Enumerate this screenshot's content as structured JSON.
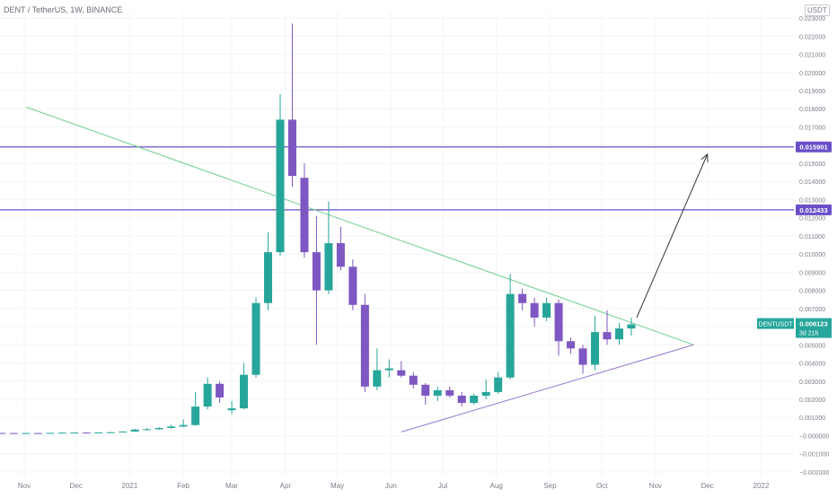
{
  "header": {
    "title": "DENT / TetherUS, 1W, BINANCE",
    "currency_badge": "USDT"
  },
  "colors": {
    "up": "#26a69a",
    "down": "#7e57c2",
    "resistance": "#6a4fc9",
    "support_line": "#9575cd",
    "trend_line": "#6fcf8f",
    "arrow": "#333333",
    "grid": "#f3f4f6",
    "axis_text": "#7a7e8a"
  },
  "chart_data": {
    "type": "candlestick",
    "symbol": "DENTUSDT",
    "interval": "1W",
    "x_labels": [
      "Nov",
      "Dec",
      "2021",
      "Feb",
      "Mar",
      "Apr",
      "May",
      "Jun",
      "Jul",
      "Aug",
      "Sep",
      "Oct",
      "Nov",
      "Dec",
      "2022"
    ],
    "y_ticks": [
      "0.023000",
      "0.022000",
      "0.021000",
      "0.020000",
      "0.019000",
      "0.018000",
      "0.017000",
      "0.016000",
      "0.015000",
      "0.014000",
      "0.013000",
      "0.012000",
      "0.011000",
      "0.010000",
      "0.009000",
      "0.008000",
      "0.007000",
      "0.006000",
      "0.005000",
      "0.004000",
      "0.003000",
      "0.002000",
      "0.001000",
      "−0.000000",
      "−0.001000",
      "−0.002000"
    ],
    "y_range": [
      -0.0023,
      0.0233
    ],
    "horizontal_levels": [
      {
        "label": "0.015901",
        "value": 0.015901
      },
      {
        "label": "0.012433",
        "value": 0.012433
      }
    ],
    "last_price": {
      "symbol": "DENTUSDT",
      "value": "0.006123",
      "countdown": "3d 21h"
    },
    "candles": [
      {
        "date": "2020-10-05",
        "o": 0.000155,
        "h": 0.000175,
        "l": 0.00014,
        "c": 0.00015
      },
      {
        "date": "2020-10-12",
        "o": 0.00015,
        "h": 0.00017,
        "l": 0.000135,
        "c": 0.000145
      },
      {
        "date": "2020-10-19",
        "o": 0.000145,
        "h": 0.00016,
        "l": 0.00013,
        "c": 0.00014
      },
      {
        "date": "2020-10-26",
        "o": 0.00014,
        "h": 0.000155,
        "l": 0.000125,
        "c": 0.000135
      },
      {
        "date": "2020-11-02",
        "o": 0.000135,
        "h": 0.00015,
        "l": 0.000125,
        "c": 0.00014
      },
      {
        "date": "2020-11-09",
        "o": 0.00014,
        "h": 0.000155,
        "l": 0.00013,
        "c": 0.000135
      },
      {
        "date": "2020-11-16",
        "o": 0.000135,
        "h": 0.00016,
        "l": 0.000125,
        "c": 0.00015
      },
      {
        "date": "2020-11-23",
        "o": 0.00015,
        "h": 0.00018,
        "l": 0.00014,
        "c": 0.00016
      },
      {
        "date": "2020-11-30",
        "o": 0.00016,
        "h": 0.000175,
        "l": 0.00015,
        "c": 0.000165
      },
      {
        "date": "2020-12-07",
        "o": 0.000165,
        "h": 0.00018,
        "l": 0.00015,
        "c": 0.000155
      },
      {
        "date": "2020-12-14",
        "o": 0.000155,
        "h": 0.000185,
        "l": 0.00015,
        "c": 0.000175
      },
      {
        "date": "2020-12-21",
        "o": 0.000175,
        "h": 0.0002,
        "l": 0.00016,
        "c": 0.000185
      },
      {
        "date": "2020-12-28",
        "o": 0.000185,
        "h": 0.00024,
        "l": 0.000175,
        "c": 0.000225
      },
      {
        "date": "2021-01-04",
        "o": 0.000225,
        "h": 0.00038,
        "l": 0.00021,
        "c": 0.00033
      },
      {
        "date": "2021-01-11",
        "o": 0.00033,
        "h": 0.00042,
        "l": 0.00029,
        "c": 0.00035
      },
      {
        "date": "2021-01-18",
        "o": 0.00035,
        "h": 0.00046,
        "l": 0.00032,
        "c": 0.00042
      },
      {
        "date": "2021-01-25",
        "o": 0.00042,
        "h": 0.0006,
        "l": 0.00038,
        "c": 0.0005
      },
      {
        "date": "2021-02-01",
        "o": 0.0005,
        "h": 0.0009,
        "l": 0.00046,
        "c": 0.00058
      },
      {
        "date": "2021-02-08",
        "o": 0.00058,
        "h": 0.0024,
        "l": 0.00055,
        "c": 0.0016
      },
      {
        "date": "2021-02-15",
        "o": 0.0016,
        "h": 0.0032,
        "l": 0.00145,
        "c": 0.00285
      },
      {
        "date": "2021-02-22",
        "o": 0.00285,
        "h": 0.003,
        "l": 0.0018,
        "c": 0.0021
      },
      {
        "date": "2021-03-01",
        "o": 0.0014,
        "h": 0.0019,
        "l": 0.0012,
        "c": 0.0015
      },
      {
        "date": "2021-03-08",
        "o": 0.0015,
        "h": 0.004,
        "l": 0.00145,
        "c": 0.00335
      },
      {
        "date": "2021-03-15",
        "o": 0.00335,
        "h": 0.0076,
        "l": 0.0032,
        "c": 0.0073
      },
      {
        "date": "2021-03-22",
        "o": 0.0073,
        "h": 0.0112,
        "l": 0.0069,
        "c": 0.0101
      },
      {
        "date": "2021-03-29",
        "o": 0.0101,
        "h": 0.0188,
        "l": 0.0099,
        "c": 0.0174
      },
      {
        "date": "2021-04-05",
        "o": 0.0174,
        "h": 0.0227,
        "l": 0.0137,
        "c": 0.0143
      },
      {
        "date": "2021-04-12",
        "o": 0.0142,
        "h": 0.015,
        "l": 0.0098,
        "c": 0.0101
      },
      {
        "date": "2021-04-19",
        "o": 0.0101,
        "h": 0.0121,
        "l": 0.005,
        "c": 0.008
      },
      {
        "date": "2021-04-26",
        "o": 0.008,
        "h": 0.0129,
        "l": 0.0078,
        "c": 0.0106
      },
      {
        "date": "2021-05-03",
        "o": 0.0106,
        "h": 0.0115,
        "l": 0.0091,
        "c": 0.0093
      },
      {
        "date": "2021-05-10",
        "o": 0.0093,
        "h": 0.0097,
        "l": 0.0069,
        "c": 0.0072
      },
      {
        "date": "2021-05-17",
        "o": 0.0072,
        "h": 0.0078,
        "l": 0.0024,
        "c": 0.0027
      },
      {
        "date": "2021-05-24",
        "o": 0.0027,
        "h": 0.0048,
        "l": 0.0025,
        "c": 0.0036
      },
      {
        "date": "2021-05-31",
        "o": 0.0036,
        "h": 0.0042,
        "l": 0.0032,
        "c": 0.0037
      },
      {
        "date": "2021-06-07",
        "o": 0.0036,
        "h": 0.0041,
        "l": 0.0032,
        "c": 0.0033
      },
      {
        "date": "2021-06-14",
        "o": 0.0033,
        "h": 0.0035,
        "l": 0.0026,
        "c": 0.0028
      },
      {
        "date": "2021-06-21",
        "o": 0.0028,
        "h": 0.0029,
        "l": 0.0017,
        "c": 0.0022
      },
      {
        "date": "2021-06-28",
        "o": 0.0022,
        "h": 0.0027,
        "l": 0.0019,
        "c": 0.0025
      },
      {
        "date": "2021-07-05",
        "o": 0.0025,
        "h": 0.0027,
        "l": 0.0021,
        "c": 0.0022
      },
      {
        "date": "2021-07-12",
        "o": 0.0022,
        "h": 0.0024,
        "l": 0.0016,
        "c": 0.0018
      },
      {
        "date": "2021-07-19",
        "o": 0.0018,
        "h": 0.0023,
        "l": 0.0017,
        "c": 0.0022
      },
      {
        "date": "2021-07-26",
        "o": 0.0022,
        "h": 0.0031,
        "l": 0.002,
        "c": 0.0024
      },
      {
        "date": "2021-08-02",
        "o": 0.0024,
        "h": 0.0035,
        "l": 0.0023,
        "c": 0.0032
      },
      {
        "date": "2021-08-09",
        "o": 0.0032,
        "h": 0.0089,
        "l": 0.0031,
        "c": 0.0078
      },
      {
        "date": "2021-08-16",
        "o": 0.0078,
        "h": 0.0081,
        "l": 0.0069,
        "c": 0.0073
      },
      {
        "date": "2021-08-23",
        "o": 0.0073,
        "h": 0.0076,
        "l": 0.006,
        "c": 0.0065
      },
      {
        "date": "2021-08-30",
        "o": 0.0065,
        "h": 0.0076,
        "l": 0.0063,
        "c": 0.0073
      },
      {
        "date": "2021-09-06",
        "o": 0.0073,
        "h": 0.0075,
        "l": 0.0044,
        "c": 0.0052
      },
      {
        "date": "2021-09-13",
        "o": 0.0052,
        "h": 0.0054,
        "l": 0.0045,
        "c": 0.0048
      },
      {
        "date": "2021-09-20",
        "o": 0.0048,
        "h": 0.005,
        "l": 0.0034,
        "c": 0.0039
      },
      {
        "date": "2021-09-27",
        "o": 0.0039,
        "h": 0.0066,
        "l": 0.0036,
        "c": 0.0057
      },
      {
        "date": "2021-10-04",
        "o": 0.0057,
        "h": 0.0069,
        "l": 0.005,
        "c": 0.0053
      },
      {
        "date": "2021-10-11",
        "o": 0.0053,
        "h": 0.0062,
        "l": 0.005,
        "c": 0.0059
      },
      {
        "date": "2021-10-18",
        "o": 0.0059,
        "h": 0.0065,
        "l": 0.0055,
        "c": 0.006123
      }
    ],
    "drawings": {
      "descending_trendline": {
        "from": [
          "2020-11-02",
          0.0181
        ],
        "to": [
          "2021-11-23",
          0.005
        ]
      },
      "ascending_trendline": {
        "from": [
          "2021-06-07",
          0.0002
        ],
        "to": [
          "2021-11-23",
          0.005
        ]
      },
      "projection_arrow": {
        "from": [
          "2021-10-18",
          0.0065
        ],
        "to": [
          "2021-12-01",
          0.0155
        ]
      }
    }
  }
}
